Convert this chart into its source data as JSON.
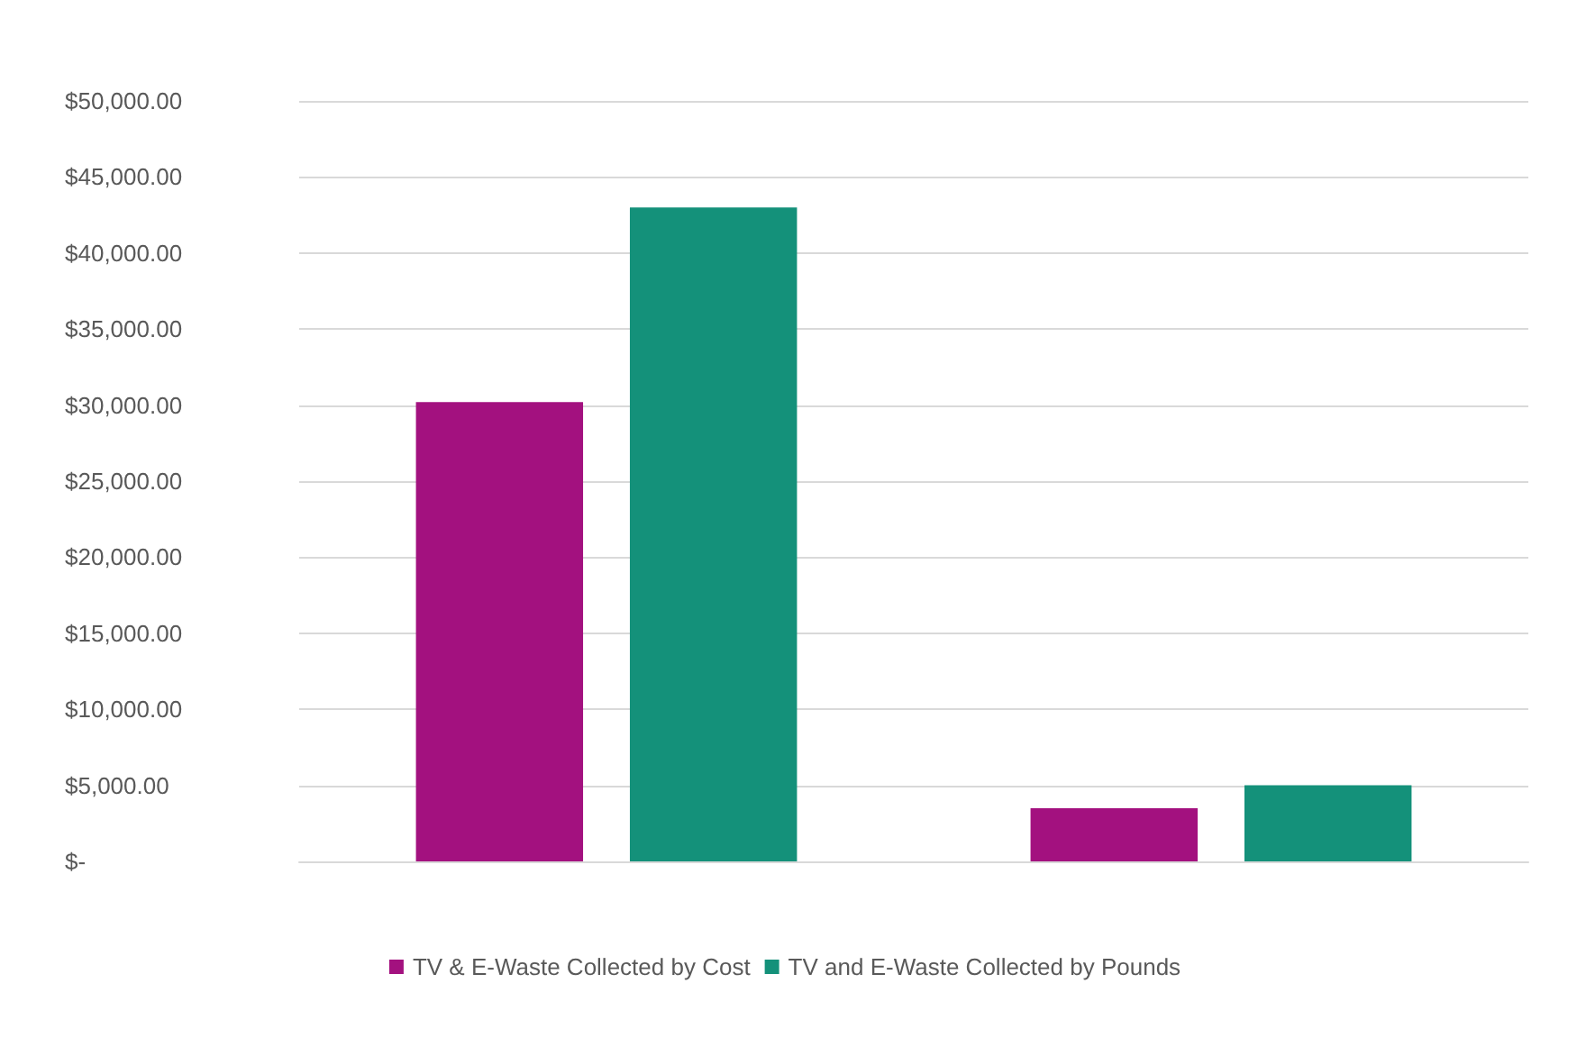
{
  "chart_data": {
    "type": "bar",
    "categories": [
      null,
      null
    ],
    "series": [
      {
        "name": "TV & E-Waste Collected by Cost",
        "color": "#a3117f",
        "values": [
          30200,
          3500
        ]
      },
      {
        "name": "TV and E-Waste Collected by Pounds",
        "color": "#14917a",
        "values": [
          43000,
          5000
        ]
      }
    ],
    "ylim": [
      0,
      50000
    ],
    "yticks": [
      {
        "value": 0,
        "label": "$-"
      },
      {
        "value": 5000,
        "label": "$5,000.00"
      },
      {
        "value": 10000,
        "label": "$10,000.00"
      },
      {
        "value": 15000,
        "label": "$15,000.00"
      },
      {
        "value": 20000,
        "label": "$20,000.00"
      },
      {
        "value": 25000,
        "label": "$25,000.00"
      },
      {
        "value": 30000,
        "label": "$30,000.00"
      },
      {
        "value": 35000,
        "label": "$35,000.00"
      },
      {
        "value": 40000,
        "label": "$40,000.00"
      },
      {
        "value": 45000,
        "label": "$45,000.00"
      },
      {
        "value": 50000,
        "label": "$50,000.00"
      }
    ],
    "grid": "y",
    "legend": "bottom"
  }
}
